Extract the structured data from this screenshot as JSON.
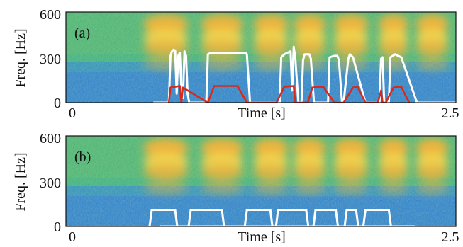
{
  "chart_data": [
    {
      "type": "heatmap",
      "panel_label": "(a)",
      "ylabel": "Freq. [Hz]",
      "xlabel": "Time [s]",
      "xlim": [
        0,
        2.5
      ],
      "ylim": [
        0,
        600
      ],
      "y_ticks": [
        "0",
        "300",
        "600"
      ],
      "x_tick_labels": [
        "0",
        "2.5"
      ],
      "series": [
        {
          "color": "#ffffff",
          "x": [
            0.56,
            0.6,
            0.6,
            0.63,
            0.64,
            0.66,
            0.67,
            0.68,
            0.69,
            0.7,
            0.71,
            0.72,
            0.73,
            0.74,
            0.75,
            0.76,
            0.77,
            0.78,
            0.79,
            0.9,
            0.91,
            0.93,
            1.15,
            1.16,
            1.18,
            1.37,
            1.38,
            1.4,
            1.42,
            1.44,
            1.45,
            1.46,
            1.47,
            1.49,
            1.51,
            1.52,
            1.53,
            1.56,
            1.57,
            1.59,
            1.68,
            1.69,
            1.72,
            1.74,
            1.75,
            1.77,
            1.78,
            1.81,
            1.82,
            1.84,
            1.92,
            1.94,
            2.01,
            2.02,
            2.03,
            2.04,
            2.05,
            2.06,
            2.07,
            2.08,
            2.11,
            2.13,
            2.15,
            2.25,
            2.27,
            2.5
          ],
          "y": [
            0,
            0,
            0,
            0,
            0,
            0,
            310,
            340,
            350,
            345,
            60,
            310,
            330,
            100,
            30,
            340,
            310,
            60,
            0,
            0,
            320,
            330,
            330,
            320,
            0,
            0,
            300,
            320,
            330,
            340,
            80,
            370,
            300,
            0,
            0,
            280,
            320,
            320,
            290,
            0,
            0,
            300,
            310,
            310,
            280,
            0,
            0,
            290,
            320,
            300,
            0,
            0,
            0,
            290,
            300,
            0,
            0,
            0,
            0,
            300,
            320,
            310,
            300,
            0,
            0,
            0
          ]
        },
        {
          "color": "#d62a1e",
          "x": [
            0.66,
            0.67,
            0.73,
            0.74,
            0.75,
            0.91,
            0.95,
            1.1,
            1.16,
            1.35,
            1.4,
            1.46,
            1.47,
            1.55,
            1.58,
            1.65,
            1.72,
            1.78,
            1.84,
            1.87,
            1.92,
            2.0,
            2.02,
            2.03,
            2.05,
            2.1,
            2.15,
            2.2
          ],
          "y": [
            0,
            100,
            110,
            0,
            100,
            0,
            110,
            110,
            0,
            0,
            105,
            110,
            0,
            0,
            100,
            105,
            0,
            0,
            100,
            105,
            0,
            0,
            80,
            0,
            0,
            100,
            105,
            0
          ]
        }
      ]
    },
    {
      "type": "heatmap",
      "panel_label": "(b)",
      "ylabel": "Freq. [Hz]",
      "xlabel": "Time [s]",
      "xlim": [
        0,
        2.5
      ],
      "ylim": [
        0,
        600
      ],
      "y_ticks": [
        "0",
        "300",
        "600"
      ],
      "x_tick_labels": [
        "0",
        "2.5"
      ],
      "series": [
        {
          "color": "#ffffff",
          "x": [
            0.6,
            0.62,
            0.64,
            0.72,
            0.74,
            0.76,
            0.88,
            0.9,
            0.91,
            1.08,
            1.09,
            1.11,
            1.36,
            1.38,
            1.39,
            1.52,
            1.53,
            1.54,
            1.58,
            1.59,
            1.6,
            1.75,
            1.76,
            1.78,
            1.84,
            1.85,
            1.87,
            1.94,
            1.95,
            1.97,
            2.01,
            2.02,
            2.03,
            2.07,
            2.08,
            2.1,
            2.15,
            2.2,
            2.22,
            2.24
          ],
          "y": [
            0,
            0,
            0,
            0,
            0,
            0,
            0,
            0,
            0,
            0,
            0,
            0,
            0,
            0,
            0,
            0,
            0,
            0,
            0,
            0,
            0,
            0,
            0,
            0,
            0,
            0,
            0,
            0,
            0,
            0,
            0,
            0,
            0,
            0,
            0,
            0,
            0,
            0,
            0,
            0
          ]
        }
      ]
    }
  ],
  "panels": [
    {
      "label": "(a)",
      "ylabel": "Freq. [Hz]",
      "xlabel": "Time [s]",
      "y_ticks": [
        "600",
        "300",
        "0"
      ],
      "x_left": "0",
      "x_right": "2.5"
    },
    {
      "label": "(b)",
      "ylabel": "Freq. [Hz]",
      "xlabel": "Time [s]",
      "y_ticks": [
        "600",
        "300",
        "0"
      ],
      "x_left": "0",
      "x_right": "2.5"
    }
  ],
  "colors": {
    "low": "#1c5fd0",
    "mid": "#2ca6a0",
    "high": "#f0b43c",
    "peak": "#ffd54a"
  }
}
